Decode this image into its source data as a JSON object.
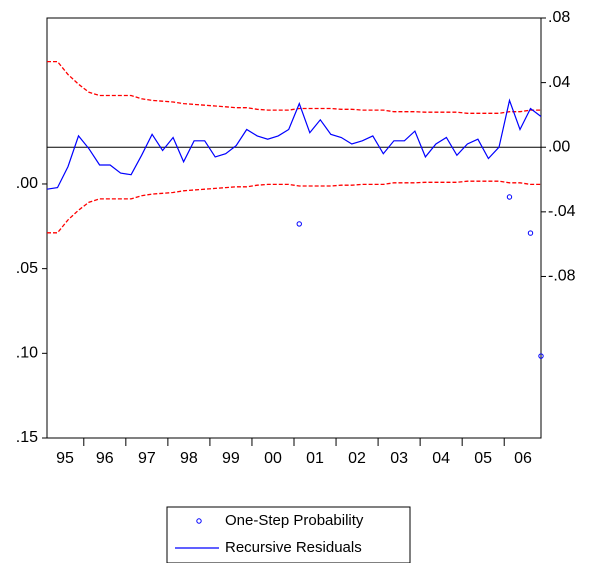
{
  "chart_data": {
    "type": "line",
    "categories": [
      "95",
      null,
      null,
      null,
      "96",
      null,
      null,
      null,
      "97",
      null,
      null,
      null,
      "98",
      null,
      null,
      null,
      "99",
      null,
      null,
      null,
      "00",
      null,
      null,
      null,
      "01",
      null,
      null,
      null,
      "02",
      null,
      null,
      null,
      "03",
      null,
      null,
      null,
      "04",
      null,
      null,
      null,
      "05",
      null,
      null,
      null,
      "06",
      null,
      null,
      null
    ],
    "ylim": [
      0.15,
      -0.098
    ],
    "yticks": [
      {
        "value": 0,
        "label": ".00"
      },
      {
        "value": 0.05,
        "label": ".05"
      },
      {
        "value": 0.1,
        "label": ".10"
      },
      {
        "value": 0.15,
        "label": ".15"
      }
    ],
    "y2lim": [
      -0.18,
      0.08
    ],
    "y2ticks": [
      {
        "value": 0.08,
        "label": ".08"
      },
      {
        "value": 0.04,
        "label": ".04"
      },
      {
        "value": 0,
        "label": ".00"
      },
      {
        "value": -0.04,
        "label": "-.04"
      },
      {
        "value": -0.08,
        "label": "-.08"
      }
    ],
    "series": [
      {
        "name": "One-Step Probability",
        "color": "#0000ff",
        "marker": "circle",
        "values": [
          null,
          null,
          null,
          null,
          null,
          null,
          null,
          null,
          null,
          null,
          null,
          null,
          null,
          null,
          null,
          null,
          null,
          null,
          null,
          null,
          null,
          null,
          null,
          null,
          0.0236,
          null,
          null,
          null,
          null,
          null,
          null,
          null,
          null,
          null,
          null,
          null,
          null,
          null,
          null,
          null,
          null,
          null,
          null,
          null,
          0.0077,
          null,
          0.029,
          0.1016
        ]
      },
      {
        "name": "Recursive Residuals",
        "color": "#0000ff",
        "axis": "y2",
        "values": [
          -0.026,
          -0.025,
          -0.012,
          0.007,
          -0.001,
          -0.011,
          -0.011,
          -0.016,
          -0.017,
          -0.005,
          0.008,
          -0.002,
          0.006,
          -0.009,
          0.004,
          0.004,
          -0.006,
          -0.004,
          0.001,
          0.011,
          0.007,
          0.005,
          0.007,
          0.011,
          0.027,
          0.009,
          0.017,
          0.008,
          0.006,
          0.002,
          0.004,
          0.007,
          -0.004,
          0.004,
          0.004,
          0.01,
          -0.006,
          0.002,
          0.006,
          -0.005,
          0.002,
          0.005,
          -0.007,
          0,
          0.029,
          0.011,
          0.024,
          0.019
        ]
      }
    ],
    "bands": {
      "color": "#ff0000",
      "axis": "y2",
      "upper": [
        0.053,
        0.053,
        0.045,
        0.039,
        0.034,
        0.032,
        0.032,
        0.032,
        0.032,
        0.03,
        0.029,
        0.0285,
        0.028,
        0.027,
        0.0265,
        0.026,
        0.0255,
        0.025,
        0.0245,
        0.0245,
        0.0235,
        0.023,
        0.023,
        0.023,
        0.024,
        0.024,
        0.024,
        0.024,
        0.0235,
        0.0235,
        0.023,
        0.023,
        0.023,
        0.022,
        0.022,
        0.022,
        0.0217,
        0.0217,
        0.0217,
        0.0217,
        0.021,
        0.021,
        0.021,
        0.021,
        0.022,
        0.022,
        0.023,
        0.023
      ],
      "lower": [
        -0.053,
        -0.053,
        -0.045,
        -0.039,
        -0.034,
        -0.032,
        -0.032,
        -0.032,
        -0.032,
        -0.03,
        -0.029,
        -0.0285,
        -0.028,
        -0.027,
        -0.0265,
        -0.026,
        -0.0255,
        -0.025,
        -0.0245,
        -0.0245,
        -0.0235,
        -0.023,
        -0.023,
        -0.023,
        -0.024,
        -0.024,
        -0.024,
        -0.024,
        -0.0235,
        -0.0235,
        -0.023,
        -0.023,
        -0.023,
        -0.022,
        -0.022,
        -0.022,
        -0.0217,
        -0.0217,
        -0.0217,
        -0.0217,
        -0.021,
        -0.021,
        -0.021,
        -0.021,
        -0.022,
        -0.022,
        -0.023,
        -0.023
      ]
    },
    "legend": "bottom"
  }
}
